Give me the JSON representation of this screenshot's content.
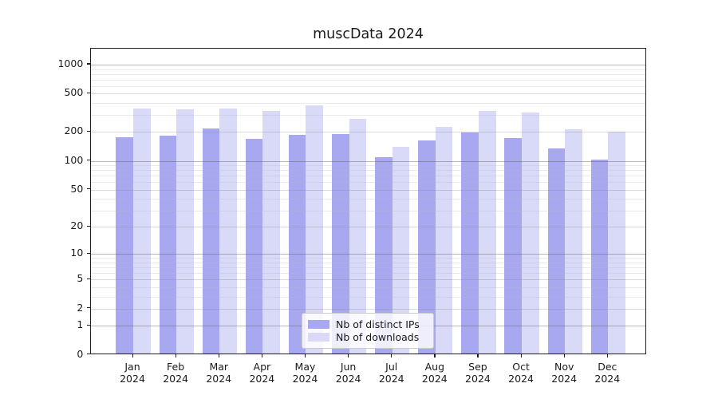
{
  "title": "muscData 2024",
  "chart_data": {
    "type": "bar",
    "title": "muscData 2024",
    "categories": [
      "Jan",
      "Feb",
      "Mar",
      "Apr",
      "May",
      "Jun",
      "Jul",
      "Aug",
      "Sep",
      "Oct",
      "Nov",
      "Dec"
    ],
    "category_year_suffix": "2024",
    "series": [
      {
        "name": "Nb of distinct IPs",
        "color": "#a8a8f0",
        "values": [
          176,
          185,
          217,
          171,
          186,
          191,
          109,
          164,
          198,
          172,
          135,
          103
        ]
      },
      {
        "name": "Nb of downloads",
        "color": "#d9d9f8",
        "values": [
          351,
          344,
          353,
          331,
          380,
          273,
          141,
          228,
          329,
          322,
          213,
          203
        ]
      }
    ],
    "y_axis": {
      "scale": "log1p",
      "range": [
        0,
        1460
      ],
      "ticks": [
        0,
        1,
        2,
        5,
        10,
        20,
        50,
        100,
        200,
        500,
        1000
      ],
      "tick_labels": [
        "0",
        "1",
        "2",
        "5",
        "10",
        "20",
        "50",
        "100",
        "200",
        "500",
        "1000"
      ],
      "minor_gridlines": [
        3,
        4,
        6,
        7,
        8,
        9,
        30,
        40,
        60,
        70,
        80,
        90,
        300,
        400,
        600,
        700,
        800,
        900
      ],
      "grid": "both"
    },
    "x_axis": {
      "label_line2": "2024"
    },
    "legend": {
      "position": "lower center"
    }
  },
  "colors": {
    "bar_distinct_ips": "#a8a8f0",
    "bar_downloads": "#d9d9f8",
    "spine": "#1f1f1f",
    "grid_decade": "#b9b9b9",
    "grid_major": "#d6d6d6",
    "grid_minor": "#e6e6e6"
  }
}
